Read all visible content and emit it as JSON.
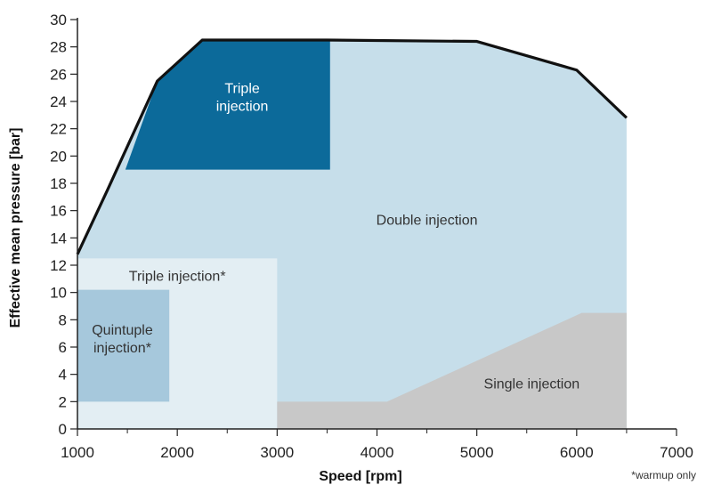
{
  "chart_data": {
    "type": "area",
    "xlabel": "Speed [rpm]",
    "ylabel": "Effective mean pressure [bar]",
    "xlim": [
      1000,
      7000
    ],
    "ylim": [
      0,
      30
    ],
    "xticks": [
      1000,
      2000,
      3000,
      4000,
      5000,
      6000,
      7000
    ],
    "yticks": [
      0,
      2,
      4,
      6,
      8,
      10,
      12,
      14,
      16,
      18,
      20,
      22,
      24,
      26,
      28,
      30
    ],
    "grid": false,
    "footnote": "*warmup only",
    "full_load_curve": {
      "x": [
        1000,
        1300,
        1800,
        2250,
        3500,
        5000,
        6000,
        6500
      ],
      "y": [
        12.8,
        17.5,
        25.5,
        28.5,
        28.5,
        28.4,
        26.3,
        22.8
      ]
    },
    "regions": [
      {
        "name": "Double injection",
        "label_lines": [
          "Double injection"
        ],
        "color": "#c6deea",
        "label_at": [
          4500,
          15.3
        ],
        "x": [
          1000,
          1300,
          1800,
          2250,
          3500,
          5000,
          6000,
          6500,
          6500,
          1000
        ],
        "y": [
          12.8,
          17.5,
          25.5,
          28.5,
          28.5,
          28.4,
          26.3,
          22.8,
          0,
          0
        ]
      },
      {
        "name": "Triple injection",
        "label_lines": [
          "Triple",
          "injection"
        ],
        "color": "#0c6a9a",
        "label_style": "light",
        "label_at": [
          2650,
          24.3
        ],
        "x": [
          1480,
          1800,
          2250,
          3530,
          3530,
          1480
        ],
        "y": [
          19.0,
          25.5,
          28.5,
          28.5,
          19.0,
          19.0
        ]
      },
      {
        "name": "Triple injection*",
        "label_lines": [
          "Triple injection*"
        ],
        "color": "#e3eef3",
        "label_at": [
          2000,
          11.2
        ],
        "x": [
          1000,
          3000,
          3000,
          1000
        ],
        "y": [
          0,
          0,
          12.5,
          12.5
        ]
      },
      {
        "name": "Quintuple injection*",
        "label_lines": [
          "Quintuple",
          "injection*"
        ],
        "color": "#a6c8dc",
        "label_at": [
          1450,
          6.6
        ],
        "x": [
          1000,
          1920,
          1920,
          1000
        ],
        "y": [
          2,
          2,
          10.2,
          10.2
        ]
      },
      {
        "name": "Single injection",
        "label_lines": [
          "Single injection"
        ],
        "color": "#c8c8c8",
        "label_at": [
          5550,
          3.3
        ],
        "x": [
          3000,
          4100,
          6050,
          6500,
          6500,
          3000
        ],
        "y": [
          2,
          2,
          8.5,
          8.5,
          0,
          0
        ]
      }
    ]
  }
}
